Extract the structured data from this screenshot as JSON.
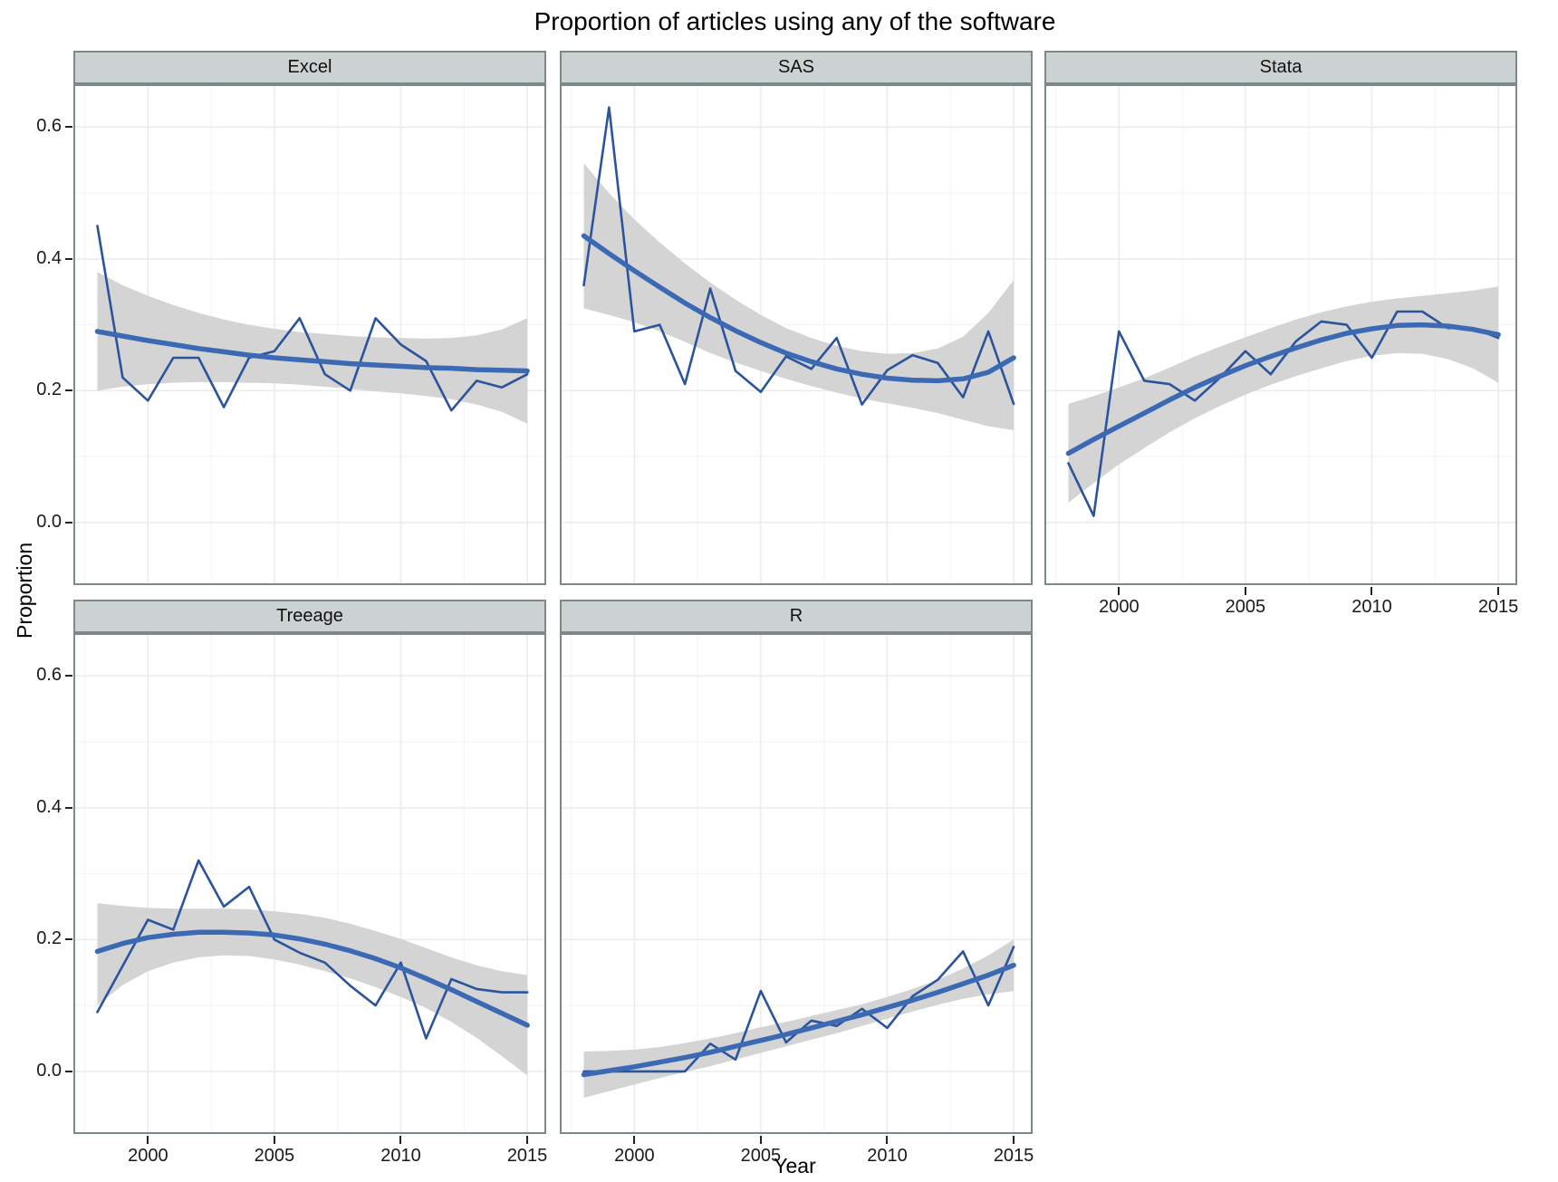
{
  "chart_data": {
    "type": "line",
    "title": "Proportion of articles using any of the software",
    "xlabel": "Year",
    "ylabel": "Proportion",
    "x_ticks": [
      2000,
      2005,
      2010,
      2015
    ],
    "y_ticks": [
      0.0,
      0.2,
      0.4,
      0.6
    ],
    "y_tick_labels": [
      "0.0",
      "0.2",
      "0.4",
      "0.6"
    ],
    "x_minor": [
      1997.5,
      2002.5,
      2007.5,
      2012.5
    ],
    "y_minor": [
      0.1,
      0.3,
      0.5
    ],
    "xlim": [
      1997.05,
      2015.75
    ],
    "ylim": [
      -0.095,
      0.665
    ],
    "grid": "major and minor gridlines, no legend",
    "years": [
      1998,
      1999,
      2000,
      2001,
      2002,
      2003,
      2004,
      2005,
      2006,
      2007,
      2008,
      2009,
      2010,
      2011,
      2012,
      2013,
      2014,
      2015
    ],
    "facets": [
      {
        "label": "Excel",
        "row": 0,
        "col": 0,
        "x_axis": false,
        "observed": [
          0.45,
          0.22,
          0.185,
          0.25,
          0.25,
          0.175,
          0.25,
          0.26,
          0.31,
          0.225,
          0.2,
          0.31,
          0.27,
          0.245,
          0.17,
          0.215,
          0.205,
          0.225
        ],
        "smooth": [
          0.29,
          0.283,
          0.276,
          0.27,
          0.264,
          0.259,
          0.254,
          0.25,
          0.247,
          0.244,
          0.241,
          0.239,
          0.237,
          0.235,
          0.234,
          0.232,
          0.231,
          0.23
        ],
        "ribbon_upper": [
          0.38,
          0.36,
          0.344,
          0.33,
          0.318,
          0.308,
          0.3,
          0.294,
          0.289,
          0.286,
          0.283,
          0.281,
          0.28,
          0.279,
          0.28,
          0.284,
          0.293,
          0.31
        ],
        "ribbon_lower": [
          0.2,
          0.206,
          0.21,
          0.212,
          0.213,
          0.213,
          0.212,
          0.211,
          0.209,
          0.206,
          0.203,
          0.199,
          0.196,
          0.192,
          0.187,
          0.179,
          0.168,
          0.15
        ]
      },
      {
        "label": "SAS",
        "row": 0,
        "col": 1,
        "x_axis": false,
        "observed": [
          0.36,
          0.63,
          0.29,
          0.3,
          0.21,
          0.355,
          0.23,
          0.198,
          0.252,
          0.233,
          0.28,
          0.179,
          0.231,
          0.254,
          0.242,
          0.19,
          0.29,
          0.18
        ],
        "smooth": [
          0.435,
          0.408,
          0.382,
          0.357,
          0.333,
          0.311,
          0.291,
          0.273,
          0.257,
          0.244,
          0.233,
          0.225,
          0.219,
          0.216,
          0.215,
          0.218,
          0.228,
          0.25
        ],
        "ribbon_upper": [
          0.545,
          0.5,
          0.46,
          0.425,
          0.393,
          0.364,
          0.338,
          0.315,
          0.295,
          0.28,
          0.268,
          0.26,
          0.256,
          0.257,
          0.264,
          0.282,
          0.318,
          0.368
        ],
        "ribbon_lower": [
          0.325,
          0.315,
          0.304,
          0.29,
          0.274,
          0.257,
          0.243,
          0.23,
          0.218,
          0.207,
          0.197,
          0.188,
          0.181,
          0.174,
          0.166,
          0.156,
          0.146,
          0.14
        ]
      },
      {
        "label": "Stata",
        "row": 0,
        "col": 2,
        "x_axis": true,
        "observed": [
          0.09,
          0.01,
          0.29,
          0.215,
          0.21,
          0.185,
          0.22,
          0.26,
          0.225,
          0.275,
          0.305,
          0.3,
          0.25,
          0.32,
          0.32,
          0.295,
          0.295,
          0.28
        ],
        "smooth": [
          0.105,
          0.126,
          0.146,
          0.166,
          0.186,
          0.205,
          0.222,
          0.238,
          0.252,
          0.265,
          0.277,
          0.287,
          0.294,
          0.299,
          0.3,
          0.298,
          0.293,
          0.285
        ],
        "ribbon_upper": [
          0.18,
          0.192,
          0.205,
          0.219,
          0.235,
          0.252,
          0.267,
          0.281,
          0.295,
          0.308,
          0.319,
          0.328,
          0.335,
          0.34,
          0.344,
          0.348,
          0.352,
          0.358
        ],
        "ribbon_lower": [
          0.03,
          0.06,
          0.088,
          0.113,
          0.137,
          0.158,
          0.177,
          0.194,
          0.209,
          0.222,
          0.234,
          0.245,
          0.253,
          0.257,
          0.256,
          0.248,
          0.234,
          0.212
        ]
      },
      {
        "label": "Treeage",
        "row": 1,
        "col": 0,
        "x_axis": true,
        "observed": [
          0.09,
          0.16,
          0.23,
          0.215,
          0.32,
          0.25,
          0.28,
          0.2,
          0.18,
          0.165,
          0.13,
          0.1,
          0.165,
          0.05,
          0.14,
          0.125,
          0.12,
          0.12
        ],
        "smooth": [
          0.182,
          0.194,
          0.203,
          0.208,
          0.211,
          0.211,
          0.21,
          0.207,
          0.201,
          0.193,
          0.183,
          0.171,
          0.157,
          0.141,
          0.124,
          0.106,
          0.088,
          0.07
        ],
        "ribbon_upper": [
          0.255,
          0.251,
          0.248,
          0.247,
          0.247,
          0.247,
          0.246,
          0.243,
          0.239,
          0.233,
          0.224,
          0.213,
          0.201,
          0.187,
          0.173,
          0.161,
          0.152,
          0.146
        ],
        "ribbon_lower": [
          0.1,
          0.131,
          0.152,
          0.165,
          0.173,
          0.176,
          0.175,
          0.17,
          0.162,
          0.152,
          0.141,
          0.128,
          0.113,
          0.096,
          0.075,
          0.051,
          0.023,
          -0.006
        ]
      },
      {
        "label": "R",
        "row": 1,
        "col": 1,
        "x_axis": true,
        "observed": [
          0.0,
          0.0,
          0.0,
          0.0,
          0.0,
          0.042,
          0.018,
          0.122,
          0.044,
          0.077,
          0.069,
          0.095,
          0.066,
          0.114,
          0.139,
          0.182,
          0.1,
          0.189
        ],
        "smooth": [
          -0.005,
          0.001,
          0.007,
          0.014,
          0.021,
          0.029,
          0.038,
          0.047,
          0.056,
          0.066,
          0.076,
          0.086,
          0.097,
          0.108,
          0.12,
          0.133,
          0.146,
          0.161
        ],
        "ribbon_upper": [
          0.03,
          0.031,
          0.033,
          0.037,
          0.043,
          0.05,
          0.058,
          0.067,
          0.075,
          0.084,
          0.093,
          0.102,
          0.113,
          0.125,
          0.139,
          0.156,
          0.176,
          0.2
        ],
        "ribbon_lower": [
          -0.04,
          -0.03,
          -0.02,
          -0.01,
          -0.001,
          0.008,
          0.018,
          0.028,
          0.038,
          0.048,
          0.058,
          0.069,
          0.08,
          0.091,
          0.101,
          0.11,
          0.117,
          0.122
        ]
      }
    ]
  },
  "colors": {
    "observed_line": "#2b549c",
    "smooth_line": "#3b69b4",
    "ribbon": "#d4d4d4",
    "strip_bg": "#ccd2d2",
    "panel_border": "#7d8888",
    "grid_major": "#ebebeb",
    "grid_minor": "#f5f5f5",
    "tick": "#222222",
    "text": "#000000"
  }
}
